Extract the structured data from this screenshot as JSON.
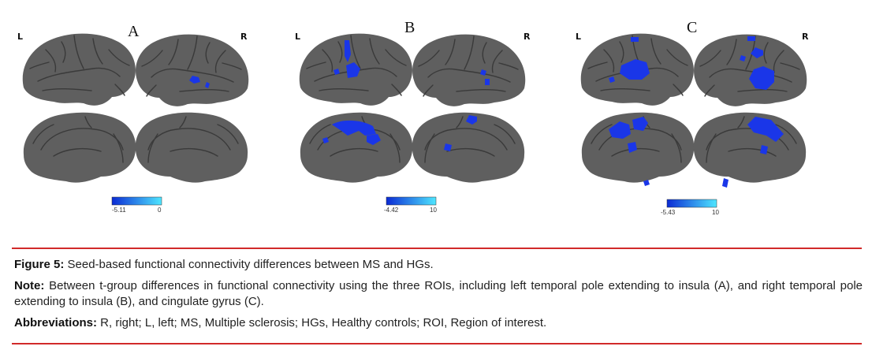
{
  "panels": [
    {
      "letter": "A",
      "left_label": "L",
      "right_label": "R",
      "colorbar_min": "-5.11",
      "colorbar_max": "0"
    },
    {
      "letter": "B",
      "left_label": "L",
      "right_label": "R",
      "colorbar_min": "-4.42",
      "colorbar_max": "10"
    },
    {
      "letter": "C",
      "left_label": "L",
      "right_label": "R",
      "colorbar_min": "-5.43",
      "colorbar_max": "10"
    }
  ],
  "colors": {
    "brain": "#5f5f5f",
    "sulcus": "#3a3a3a",
    "activation": "#1a36e8",
    "colorbar_dark": "#0b2bd4",
    "colorbar_light": "#4fe6ff",
    "rule": "#d12a2a"
  },
  "caption": {
    "figure_label": "Figure 5:",
    "figure_text": " Seed-based functional connectivity differences between MS and HGs.",
    "note_label": "Note:",
    "note_text": " Between t-group differences in functional connectivity using the three ROIs, including left temporal pole extending to insula (A), and right temporal pole extending to insula (B), and cingulate gyrus (C).",
    "abbr_label": "Abbreviations:",
    "abbr_text": " R, right; L, left; MS, Multiple sclerosis; HGs, Healthy controls; ROI, Region of interest."
  }
}
